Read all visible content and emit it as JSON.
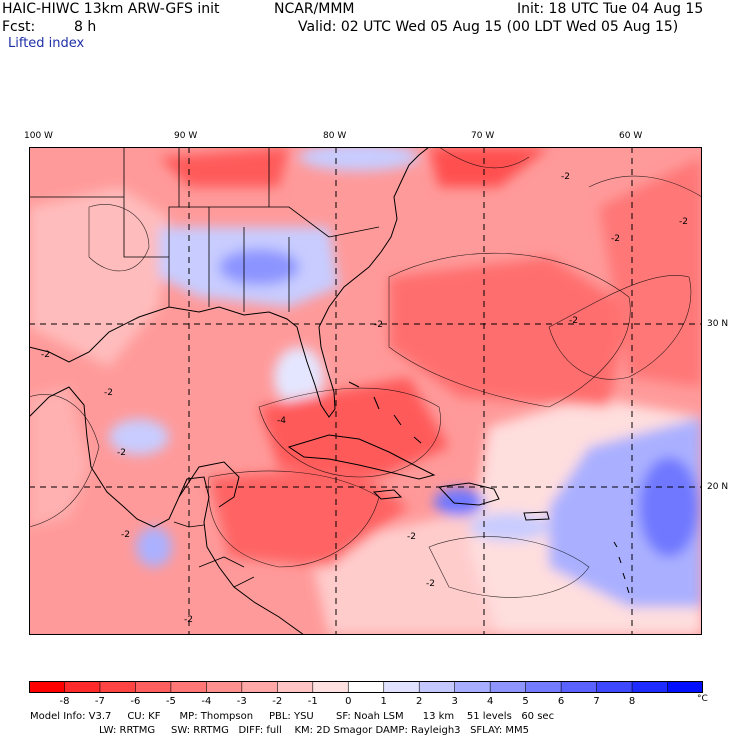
{
  "header": {
    "model": "HAIC-HIWC 13km ARW-GFS init",
    "org": "NCAR/MMM",
    "init": "Init: 18 UTC Tue 04 Aug 15",
    "fcst_label": "Fcst:",
    "fcst_value": "8 h",
    "valid": "Valid: 02 UTC Wed 05 Aug 15 (00 LDT Wed 05 Aug 15)",
    "field": "Lifted index"
  },
  "map": {
    "lon_labels": [
      "100 W",
      "90 W",
      "80 W",
      "70 W",
      "60 W"
    ],
    "lat_labels": [
      "30 N",
      "20 N"
    ],
    "contour_labels": [
      "-2",
      "-2",
      "-2",
      "-2",
      "-2",
      "-2",
      "-2",
      "-4",
      "-2",
      "-2",
      "-2",
      "-2",
      "-2"
    ],
    "colors": {
      "deep_red": "#ff3b3b",
      "red": "#ff6a6a",
      "pink": "#ff9a9a",
      "light_pink": "#ffcccc",
      "white": "#ffffff",
      "light_blue": "#c8ccff",
      "blue": "#8c94ff",
      "deep_blue": "#3344ff"
    }
  },
  "colorbar": {
    "labels": [
      "-8",
      "-7",
      "-6",
      "-5",
      "-4",
      "-3",
      "-2",
      "-1",
      "0",
      "1",
      "2",
      "3",
      "4",
      "5",
      "6",
      "7",
      "8"
    ],
    "unit": "°C",
    "colors": [
      "#ff0000",
      "#ff2a2a",
      "#ff4444",
      "#ff5e5e",
      "#ff7777",
      "#ff9090",
      "#ffa8a8",
      "#ffc4c4",
      "#ffe0e0",
      "#ffffff",
      "#e0e2ff",
      "#c4c8ff",
      "#a8aeff",
      "#8e95ff",
      "#737cff",
      "#5a63ff",
      "#3d48ff",
      "#1f2cff",
      "#0010ff"
    ]
  },
  "info": {
    "line1": "Model Info: V3.7     CU: KF      MP: Thompson     PBL: YSU       SF: Noah LSM      13 km    51 levels   60 sec",
    "line2": "LW: RRTMG     SW: RRTMG   DIFF: full    KM: 2D Smagor DAMP: Rayleigh3   SFLAY: MM5"
  }
}
